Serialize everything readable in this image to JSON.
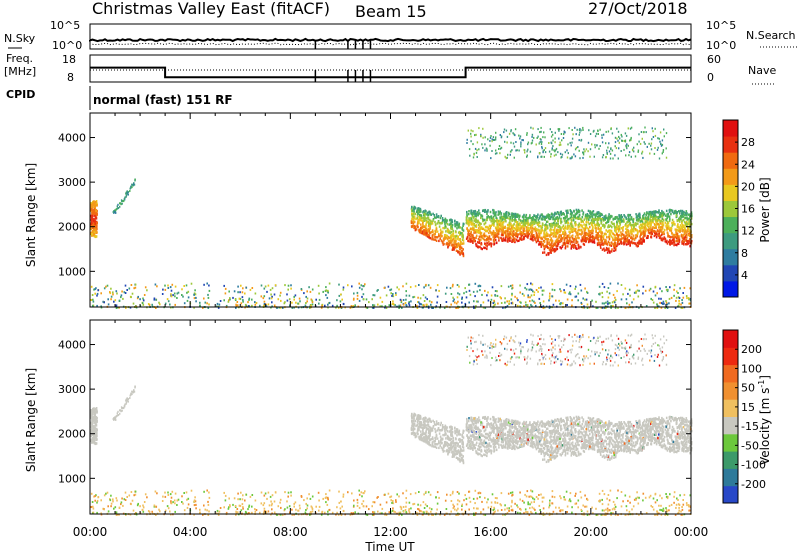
{
  "header": {
    "title": "Christmas Valley East (fitACF)",
    "beam": "Beam 15",
    "date": "27/Oct/2018"
  },
  "summary_labels": {
    "nsky": "N.Sky",
    "nsearch": "N.Search",
    "freq": "Freq.",
    "freq_unit": "[MHz]",
    "nave": "Nave",
    "cpid": "CPID",
    "cpid_value": "normal (fast) 151 RF",
    "nsky_ticks": [
      "10^5",
      "10^0"
    ],
    "nsearch_ticks": [
      "10^5",
      "10^0"
    ],
    "freq_ticks": [
      "18",
      "8"
    ],
    "nave_ticks": [
      "60",
      "0"
    ]
  },
  "colors": {
    "power_scale": [
      "#0018e6",
      "#2046b4",
      "#2e7ca0",
      "#3d9b7f",
      "#4cb05a",
      "#9cc83a",
      "#e8c820",
      "#f39a18",
      "#f06a10",
      "#e83010",
      "#e01010"
    ],
    "velocity_scale": [
      "#2848c8",
      "#2e7a9a",
      "#3c9a6a",
      "#6cc83c",
      "#c8c8c0",
      "#f0c060",
      "#f09030",
      "#f06a20",
      "#ee2a10",
      "#e01010"
    ],
    "ground_scatter": "#c8c8c0"
  },
  "chart_data": {
    "type": "heatmap",
    "x_axis": {
      "label": "Time UT",
      "range": [
        "00:00",
        "24:00"
      ],
      "ticks": [
        "00:00",
        "04:00",
        "08:00",
        "12:00",
        "16:00",
        "20:00",
        "00:00"
      ]
    },
    "panels": [
      {
        "name": "power",
        "ylabel": "Slant Range [km]",
        "ylim": [
          200,
          4550
        ],
        "yticks": [
          "1000",
          "2000",
          "3000",
          "4000"
        ],
        "colorbar_label": "Power [dB]",
        "colorbar_ticks": [
          "4",
          "8",
          "12",
          "16",
          "20",
          "24",
          "28"
        ],
        "colorbar_range": [
          0,
          32
        ]
      },
      {
        "name": "velocity",
        "ylabel": "Slant Range [km]",
        "ylim": [
          200,
          4550
        ],
        "yticks": [
          "1000",
          "2000",
          "3000",
          "4000"
        ],
        "colorbar_label": "Velocity [m s",
        "colorbar_label_sup": "-1",
        "colorbar_ticks": [
          "200",
          "100",
          "50",
          "15",
          "-15",
          "-50",
          "-100",
          "-200"
        ]
      }
    ],
    "frequency_mhz": [
      {
        "start_hr": 0,
        "end_hr": 3,
        "value": 14
      },
      {
        "start_hr": 3,
        "end_hr": 15,
        "value": 10
      },
      {
        "start_hr": 15,
        "end_hr": 24,
        "value": 14
      }
    ],
    "scatter_regions": [
      {
        "t0": 0.0,
        "t1": 0.25,
        "r0": 1800,
        "r1": 2600,
        "kind": "ground_strong",
        "power_db": 24
      },
      {
        "t0": 0.9,
        "t1": 1.8,
        "r0": 2300,
        "r1": 3050,
        "kind": "sparse_streak",
        "power_db": 10
      },
      {
        "t0": 0.0,
        "t1": 24.0,
        "r0": 200,
        "r1": 750,
        "kind": "near_range_noise",
        "power_db": 12
      },
      {
        "t0": 12.8,
        "t1": 14.9,
        "r0": 1300,
        "r1": 2500,
        "kind": "ground_rising",
        "power_db": 20
      },
      {
        "t0": 15.0,
        "t1": 24.0,
        "r0": 1400,
        "r1": 2450,
        "kind": "ground_band",
        "power_db": 22
      },
      {
        "t0": 15.0,
        "t1": 23.0,
        "r0": 3550,
        "r1": 4250,
        "kind": "far_patch",
        "power_db": 12
      }
    ]
  }
}
